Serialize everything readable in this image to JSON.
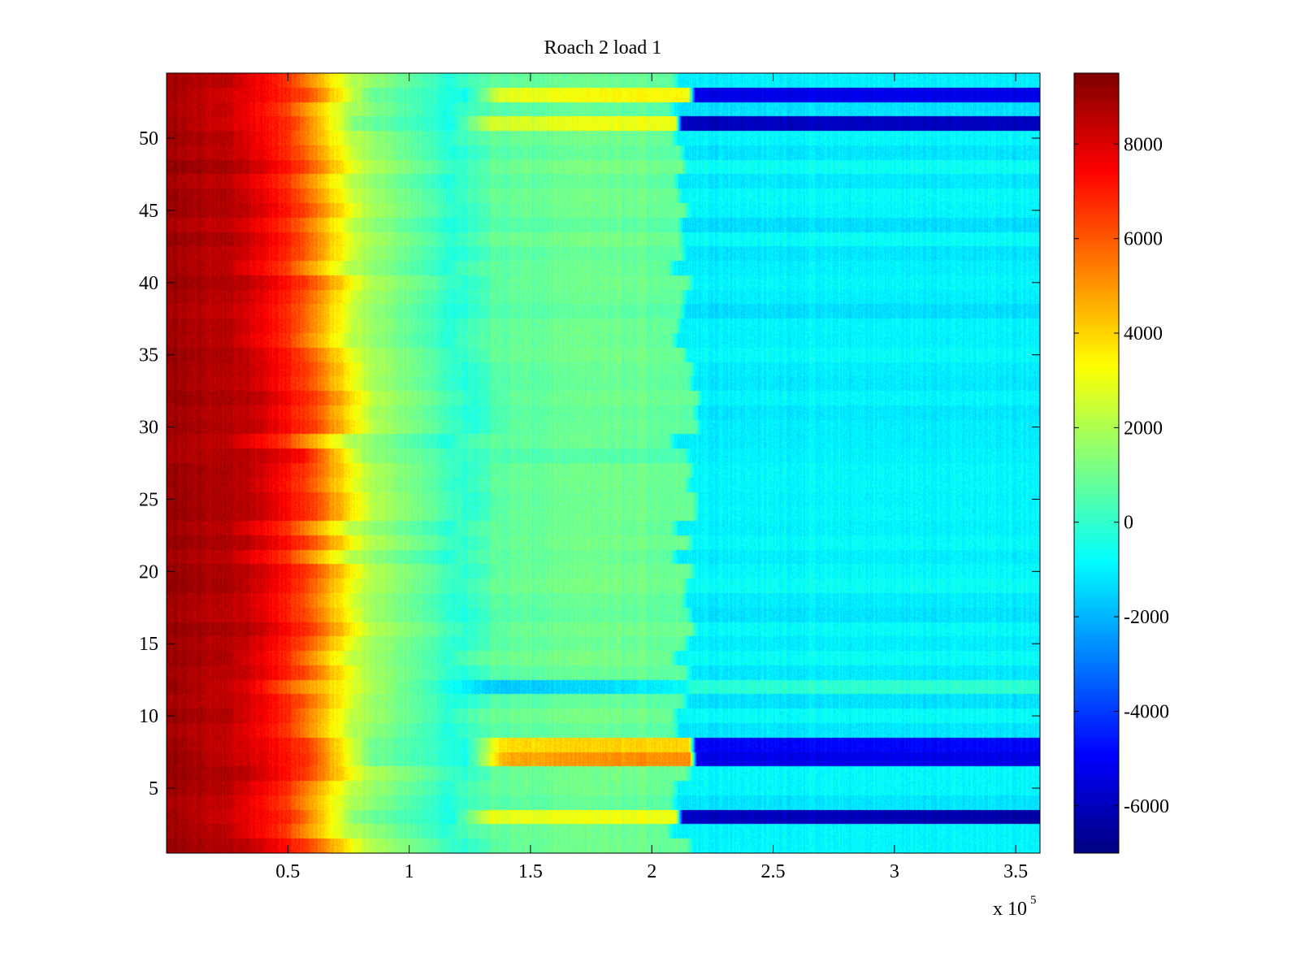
{
  "chart_data": {
    "type": "heatmap",
    "title": "Roach 2 load 1",
    "xlabel": "",
    "ylabel": "",
    "x_multiplier_label": "x 10",
    "x_multiplier_exponent": "5",
    "xlim": [
      0,
      3.6
    ],
    "ylim": [
      0.5,
      54.5
    ],
    "x_ticks": [
      0.5,
      1,
      1.5,
      2,
      2.5,
      3,
      3.5
    ],
    "x_tick_labels": [
      "0.5",
      "1",
      "1.5",
      "2",
      "2.5",
      "3",
      "3.5"
    ],
    "y_ticks": [
      5,
      10,
      15,
      20,
      25,
      30,
      35,
      40,
      45,
      50
    ],
    "y_tick_labels": [
      "5",
      "10",
      "15",
      "20",
      "25",
      "30",
      "35",
      "40",
      "45",
      "50"
    ],
    "colorbar": {
      "colormap": "jet",
      "clim": [
        -7000,
        9500
      ],
      "ticks": [
        -6000,
        -4000,
        -2000,
        0,
        2000,
        4000,
        6000,
        8000
      ],
      "tick_labels": [
        "-6000",
        "-4000",
        "-2000",
        "0",
        "2000",
        "4000",
        "6000",
        "8000"
      ]
    },
    "rows": 54,
    "row_profile_description_points_x_1e5": [
      0.0,
      0.3,
      0.55,
      0.8,
      1.2,
      1.35,
      1.8,
      2.12,
      2.15,
      3.6
    ],
    "baseline_profile": [
      9000,
      8500,
      6500,
      2200,
      -200,
      700,
      1000,
      800,
      -1000,
      -1000
    ],
    "special_rows": {
      "row_3": [
        9000,
        8000,
        6500,
        1200,
        -500,
        2800,
        3000,
        3000,
        -6000,
        -6500
      ],
      "row_7": [
        9000,
        8000,
        6500,
        1000,
        -600,
        4500,
        5000,
        5000,
        -5500,
        -5500
      ],
      "row_8": [
        9000,
        8000,
        6500,
        1200,
        -500,
        3800,
        4000,
        4000,
        -5000,
        -5000
      ],
      "row_51": [
        9000,
        8000,
        6500,
        1200,
        -500,
        2500,
        3000,
        3000,
        -6000,
        -6000
      ],
      "row_53": [
        9000,
        8000,
        6500,
        1300,
        -400,
        3000,
        3500,
        3500,
        -5000,
        -5000
      ],
      "row_28": [
        8800,
        8700,
        7500,
        1800,
        100,
        500,
        600,
        500,
        -900,
        -900
      ],
      "row_12": [
        9000,
        8000,
        5000,
        2200,
        -1000,
        -1800,
        -1500,
        -900,
        -300,
        -200
      ]
    }
  }
}
